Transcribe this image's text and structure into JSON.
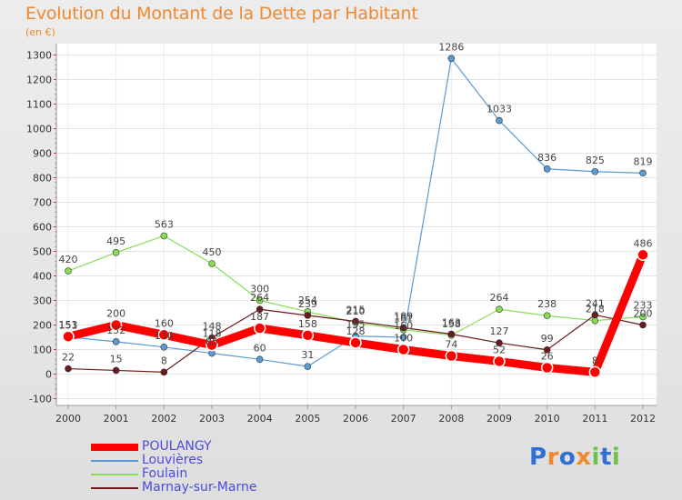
{
  "title": "Evolution du Montant de la Dette par Habitant",
  "subtitle": "(en €)",
  "chart_data": {
    "type": "line",
    "categories": [
      "2000",
      "2001",
      "2002",
      "2003",
      "2004",
      "2005",
      "2006",
      "2007",
      "2008",
      "2009",
      "2010",
      "2011",
      "2012"
    ],
    "ylim": [
      -100,
      1300
    ],
    "yticks": [
      -100,
      0,
      100,
      200,
      300,
      400,
      500,
      600,
      700,
      800,
      900,
      1000,
      1100,
      1200,
      1300
    ],
    "series": [
      {
        "name": "POULANGY",
        "color": "#ff0000",
        "values": [
          153,
          200,
          160,
          118,
          187,
          158,
          128,
          100,
          74,
          52,
          26,
          8,
          486
        ]
      },
      {
        "name": "Louvières",
        "color": "#5b9bd5",
        "values": [
          151,
          132,
          110,
          85,
          60,
          31,
          155,
          150,
          1286,
          1033,
          836,
          825,
          819
        ]
      },
      {
        "name": "Foulain",
        "color": "#88dd55",
        "values": [
          420,
          495,
          563,
          450,
          300,
          254,
          210,
          181,
          158,
          264,
          238,
          218,
          233
        ]
      },
      {
        "name": "Marnay-sur-Marne",
        "color": "#6b1a1a",
        "values": [
          22,
          15,
          8,
          148,
          264,
          239,
          215,
          189,
          163,
          127,
          99,
          241,
          200
        ]
      }
    ]
  },
  "legend": [
    {
      "label": "POULANGY",
      "color": "#ff0000"
    },
    {
      "label": "Louvières",
      "color": "#5b9bd5"
    },
    {
      "label": "Foulain",
      "color": "#88dd55"
    },
    {
      "label": "Marnay-sur-Marne",
      "color": "#6b1a1a"
    }
  ],
  "logo": {
    "letters": [
      "P",
      "r",
      "o",
      "x",
      "i",
      "t",
      "i"
    ],
    "colors": [
      "#2f6fd6",
      "#f0892e",
      "#2f6fd6",
      "#f0892e",
      "#6cc24a",
      "#2f6fd6",
      "#6cc24a"
    ]
  }
}
